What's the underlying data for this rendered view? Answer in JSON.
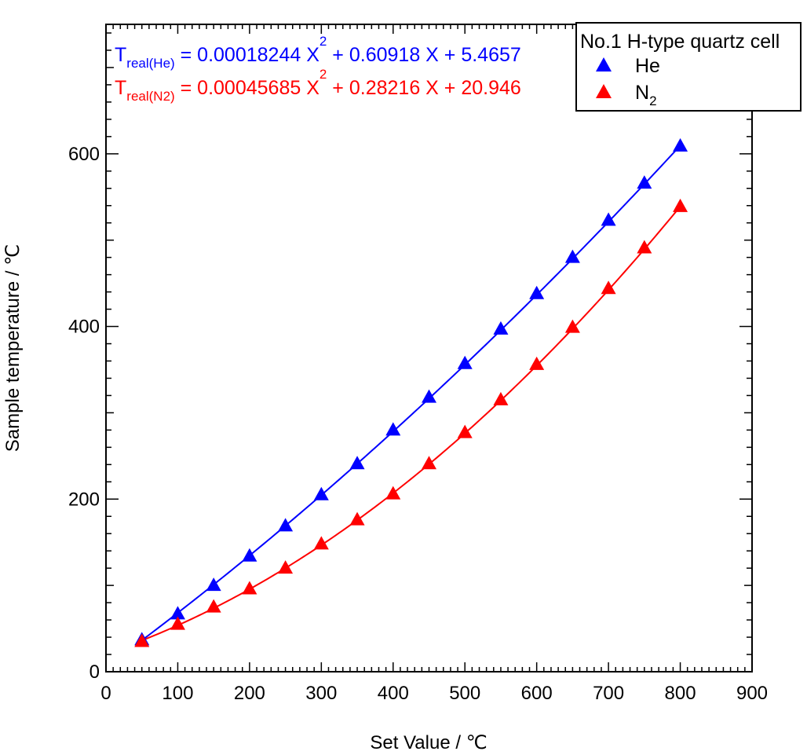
{
  "chart_data": {
    "type": "scatter",
    "xlabel": "Set Value  / ℃",
    "ylabel": "Sample temperature / ℃",
    "xlim": [
      0,
      900
    ],
    "ylim": [
      0,
      750
    ],
    "x_ticks": [
      "0",
      "100",
      "200",
      "300",
      "400",
      "500",
      "600",
      "700",
      "800",
      "900"
    ],
    "y_ticks": [
      "0",
      "200",
      "400",
      "600"
    ],
    "x_tick_values": [
      0,
      100,
      200,
      300,
      400,
      500,
      600,
      700,
      800,
      900
    ],
    "y_tick_values": [
      0,
      200,
      400,
      600
    ],
    "grid": false,
    "legend": {
      "title": "No.1 H-type quartz cell",
      "placement": "top-right"
    },
    "series": [
      {
        "name": "He",
        "legend_label": "He",
        "color": "#0000ff",
        "marker": "triangle",
        "x": [
          50,
          100,
          150,
          200,
          250,
          300,
          350,
          400,
          450,
          500,
          550,
          600,
          650,
          700,
          750,
          800
        ],
        "y": [
          37,
          67,
          100,
          134,
          169,
          205,
          241,
          280,
          318,
          357,
          397,
          438,
          480,
          523,
          566,
          609
        ],
        "fit": {
          "a": 0.00018244,
          "b": 0.60918,
          "c": 5.4657,
          "label_T": "T",
          "label_sub": "real(He)",
          "label_rest": " = 0.00018244 X",
          "label_sup": "2",
          "label_tail": " + 0.60918 X + 5.4657"
        }
      },
      {
        "name": "N2",
        "legend_label": "N",
        "legend_sub": "2",
        "color": "#ff0000",
        "marker": "triangle",
        "x": [
          50,
          100,
          150,
          200,
          250,
          300,
          350,
          400,
          450,
          500,
          550,
          600,
          650,
          700,
          750,
          800
        ],
        "y": [
          35,
          55,
          75,
          96,
          120,
          148,
          176,
          206,
          241,
          277,
          315,
          356,
          399,
          444,
          491,
          539
        ],
        "fit": {
          "a": 0.00045685,
          "b": 0.28216,
          "c": 20.946,
          "label_T": "T",
          "label_sub": "real(N2)",
          "label_rest": " = 0.00045685 X",
          "label_sup": "2",
          "label_tail": " + 0.28216 X + 20.946"
        }
      }
    ]
  }
}
